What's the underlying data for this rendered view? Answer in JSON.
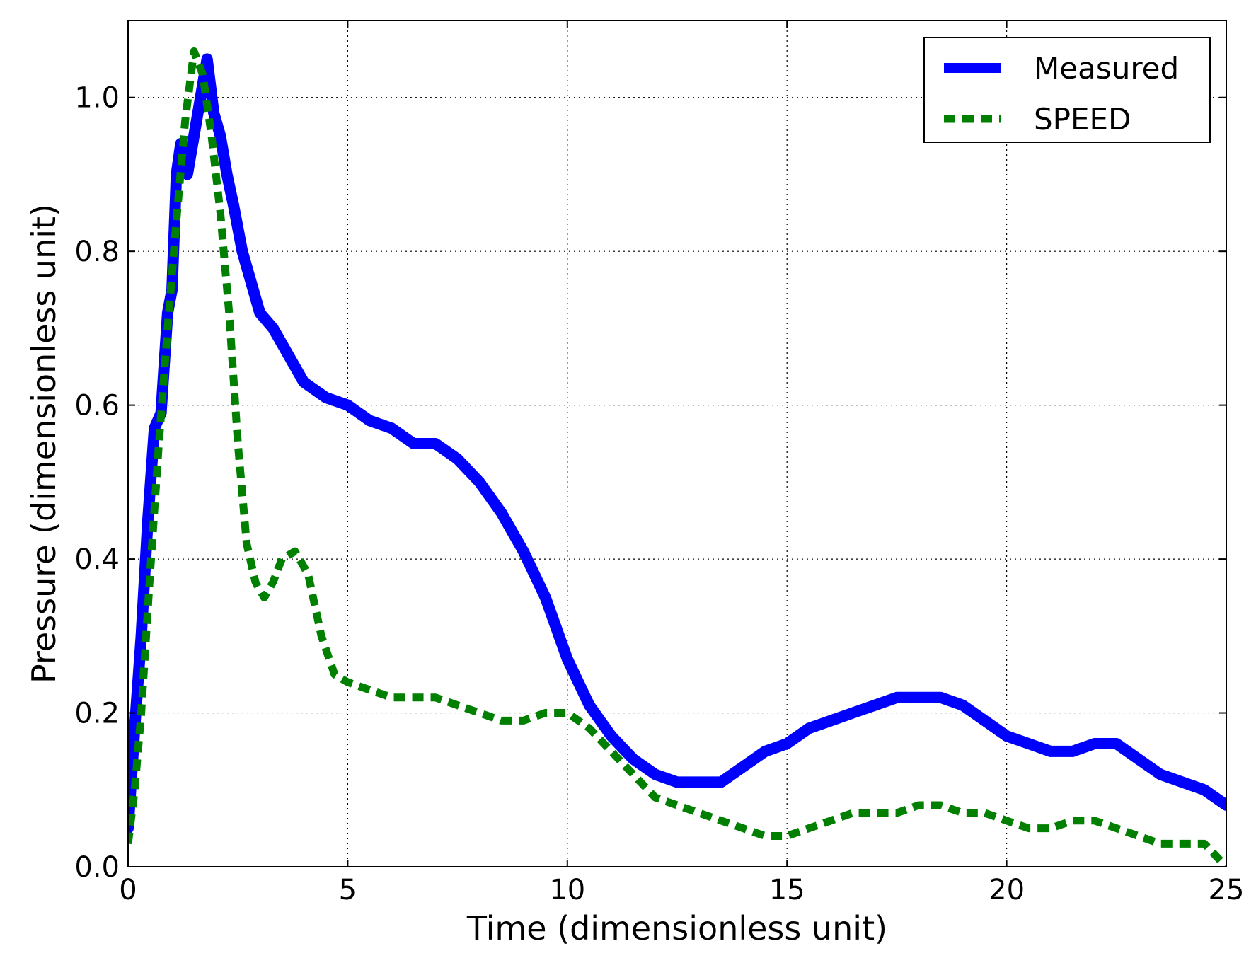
{
  "chart_data": {
    "type": "line",
    "title": "",
    "xlabel": "Time (dimensionless unit)",
    "ylabel": "Pressure (dimensionless unit)",
    "xlim": [
      0,
      25
    ],
    "ylim": [
      0,
      1.1
    ],
    "xticks": [
      0,
      5,
      10,
      15,
      20,
      25
    ],
    "xtick_labels": [
      "0",
      "5",
      "10",
      "15",
      "20",
      "25"
    ],
    "yticks": [
      0.0,
      0.2,
      0.4,
      0.6,
      0.8,
      1.0
    ],
    "ytick_labels": [
      "0.0",
      "0.2",
      "0.4",
      "0.6",
      "0.8",
      "1.0"
    ],
    "grid": true,
    "legend_position": "top-right",
    "series": [
      {
        "name": "Measured",
        "color": "#0000ff",
        "style": "solid",
        "x": [
          0,
          0.15,
          0.3,
          0.45,
          0.6,
          0.75,
          0.9,
          1.0,
          1.1,
          1.2,
          1.35,
          1.5,
          1.65,
          1.8,
          1.95,
          2.1,
          2.25,
          2.4,
          2.6,
          2.8,
          3.0,
          3.3,
          3.6,
          4.0,
          4.5,
          5.0,
          5.5,
          6.0,
          6.5,
          7.0,
          7.5,
          8.0,
          8.5,
          9.0,
          9.5,
          10.0,
          10.5,
          11.0,
          11.5,
          12.0,
          12.5,
          13.0,
          13.5,
          14.0,
          14.5,
          15.0,
          15.5,
          16.0,
          16.5,
          17.0,
          17.5,
          18.0,
          18.5,
          19.0,
          19.5,
          20.0,
          20.5,
          21.0,
          21.5,
          22.0,
          22.5,
          23.0,
          23.5,
          24.0,
          24.5,
          25.0
        ],
        "values": [
          0.05,
          0.18,
          0.3,
          0.45,
          0.57,
          0.59,
          0.72,
          0.75,
          0.9,
          0.94,
          0.9,
          0.95,
          1.0,
          1.05,
          0.98,
          0.95,
          0.9,
          0.86,
          0.8,
          0.76,
          0.72,
          0.7,
          0.67,
          0.63,
          0.61,
          0.6,
          0.58,
          0.57,
          0.55,
          0.55,
          0.53,
          0.5,
          0.46,
          0.41,
          0.35,
          0.27,
          0.21,
          0.17,
          0.14,
          0.12,
          0.11,
          0.11,
          0.11,
          0.13,
          0.15,
          0.16,
          0.18,
          0.19,
          0.2,
          0.21,
          0.22,
          0.22,
          0.22,
          0.21,
          0.19,
          0.17,
          0.16,
          0.15,
          0.15,
          0.16,
          0.16,
          0.14,
          0.12,
          0.11,
          0.1,
          0.08
        ]
      },
      {
        "name": "SPEED",
        "color": "#007f00",
        "style": "dashed",
        "x": [
          0,
          0.15,
          0.3,
          0.5,
          0.7,
          0.9,
          1.1,
          1.3,
          1.5,
          1.7,
          1.9,
          2.1,
          2.3,
          2.5,
          2.7,
          2.9,
          3.1,
          3.3,
          3.5,
          3.8,
          4.1,
          4.4,
          4.7,
          5.0,
          5.5,
          6.0,
          6.5,
          7.0,
          7.5,
          8.0,
          8.5,
          9.0,
          9.5,
          10.0,
          10.5,
          11.0,
          11.5,
          12.0,
          12.5,
          13.0,
          13.5,
          14.0,
          14.5,
          15.0,
          15.5,
          16.0,
          16.5,
          17.0,
          17.5,
          18.0,
          18.5,
          19.0,
          19.5,
          20.0,
          20.5,
          21.0,
          21.5,
          22.0,
          22.5,
          23.0,
          23.5,
          24.0,
          24.5,
          25.0
        ],
        "values": [
          0.03,
          0.1,
          0.2,
          0.38,
          0.55,
          0.7,
          0.84,
          0.97,
          1.06,
          1.03,
          0.95,
          0.85,
          0.72,
          0.55,
          0.42,
          0.37,
          0.35,
          0.37,
          0.4,
          0.41,
          0.38,
          0.3,
          0.25,
          0.24,
          0.23,
          0.22,
          0.22,
          0.22,
          0.21,
          0.2,
          0.19,
          0.19,
          0.2,
          0.2,
          0.18,
          0.15,
          0.12,
          0.09,
          0.08,
          0.07,
          0.06,
          0.05,
          0.04,
          0.04,
          0.05,
          0.06,
          0.07,
          0.07,
          0.07,
          0.08,
          0.08,
          0.07,
          0.07,
          0.06,
          0.05,
          0.05,
          0.06,
          0.06,
          0.05,
          0.04,
          0.03,
          0.03,
          0.03,
          0.0
        ]
      }
    ]
  }
}
